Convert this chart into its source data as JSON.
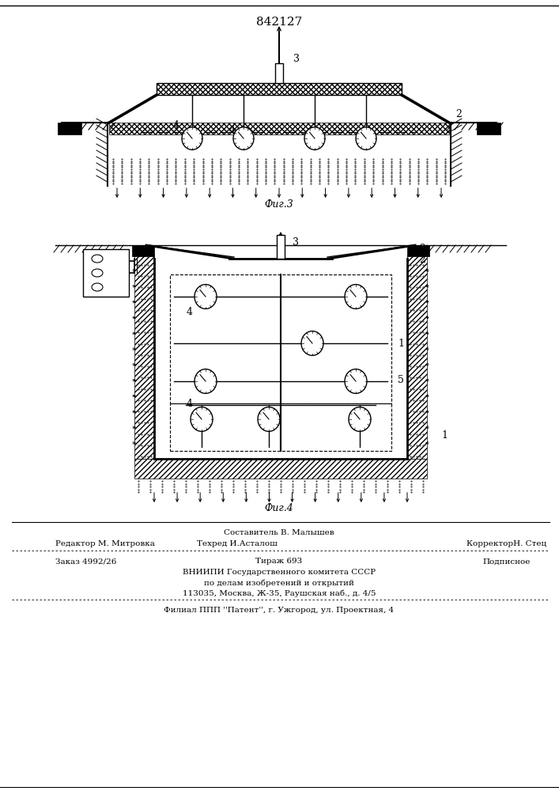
{
  "patent_number": "842127",
  "fig3_label": "Фиг.3",
  "fig4_label": "Фиг.4",
  "editor_line": "Редактор М. Митровка",
  "composer_line": "Составитель В. Малышев",
  "techred_line": "Техред И.Асталош",
  "corrector_line": "КорректорН. Стец",
  "order_line": "Заказ 4992/26",
  "tirazh_line": "Тираж 693",
  "podpisnoe_line": "Подписное",
  "vniip_line": "ВНИИПИ Государственного комитета СССР",
  "po_delam_line": "по делам изобретений и открытий",
  "address_line": "113035, Москва, Ж-35, Раушская наб., д. 4/5",
  "filial_line": "Филиал ППП ''Патент'', г. Ужгород, ул. Проектная, 4",
  "bg_color": "#ffffff",
  "line_color": "#000000"
}
